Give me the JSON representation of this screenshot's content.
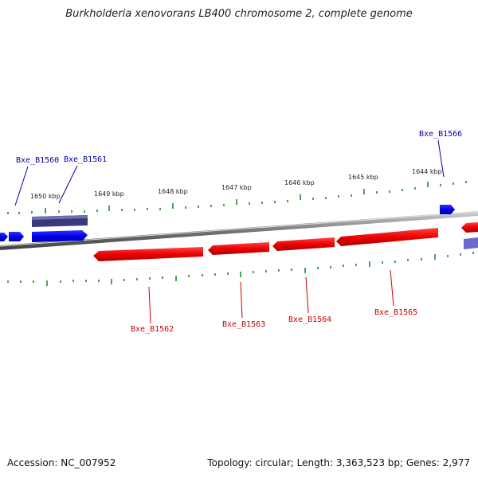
{
  "title": "Burkholderia xenovorans LB400 chromosome 2, complete genome",
  "footer": {
    "accession": "Accession: NC_007952",
    "stats": "Topology: circular; Length: 3,363,523 bp; Genes: 2,977"
  },
  "colors": {
    "forward_gene": "#0000ee",
    "reverse_gene": "#ee0000",
    "label_forward": "#0000aa",
    "label_reverse": "#cc0000",
    "ticks": "#228b22",
    "backbone": "#777777"
  },
  "kbp_labels": [
    "1650 kbp",
    "1649 kbp",
    "1648 kbp",
    "1647 kbp",
    "1646 kbp",
    "1645 kbp",
    "1644 kbp"
  ],
  "genes_forward": [
    {
      "label": "Bxe_B1560"
    },
    {
      "label": "Bxe_B1561"
    },
    {
      "label": "Bxe_B1566"
    }
  ],
  "genes_reverse": [
    {
      "label": "Bxe_B1562"
    },
    {
      "label": "Bxe_B1563"
    },
    {
      "label": "Bxe_B1564"
    },
    {
      "label": "Bxe_B1565"
    }
  ]
}
